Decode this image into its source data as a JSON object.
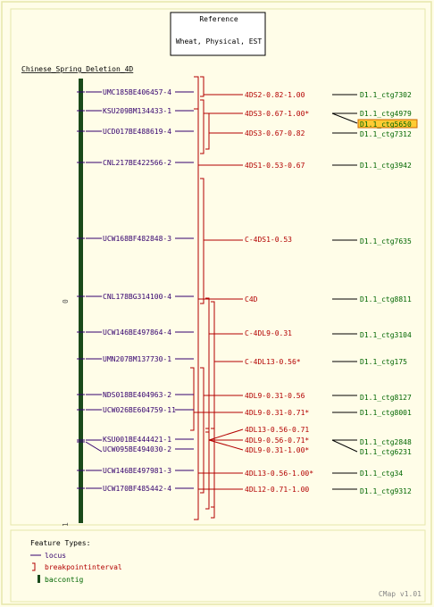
{
  "reference": {
    "title": "Reference",
    "subtitle": "Wheat, Physical, EST"
  },
  "map_name": "Chinese_Spring_Deletion_4D",
  "scale": {
    "start": "0",
    "end": "1"
  },
  "colors": {
    "locus_label": "#33006e",
    "breakpoint": "#b30000",
    "contig": "#006600",
    "contig_bar": "#1a4a1a",
    "highlight_fill": "#ffcc33",
    "highlight_border": "#cc6600",
    "border": "#e6e6aa"
  },
  "loci": [
    "UMC185BE406457-4",
    "KSU209BM134433-1",
    "UCD017BE488619-4",
    "CNL217BE422566-2",
    "UCW168BF482848-3",
    "CNL178BG314100-4",
    "UCW146BE497864-4",
    "UMN207BM137730-1",
    "NDS018BE404963-2",
    "UCW026BE604759-11",
    "KSU001BE444421-1",
    "UCW095BE494030-2",
    "UCW146BE497981-3",
    "UCW170BF485442-4"
  ],
  "breakpoints": [
    "4DS2-0.82-1.00",
    "4DS3-0.67-1.00*",
    "4DS3-0.67-0.82",
    "4DS1-0.53-0.67",
    "C-4DS1-0.53",
    "C4D",
    "C-4DL9-0.31",
    "C-4DL13-0.56*",
    "4DL9-0.31-0.56",
    "4DL9-0.31-0.71*",
    "4DL13-0.56-0.71",
    "4DL9-0.56-0.71*",
    "4DL9-0.31-1.00*",
    "4DL13-0.56-1.00*",
    "4DL12-0.71-1.00"
  ],
  "contigs": [
    "D1.1_ctg7302",
    "D1.1_ctg4979",
    "D1.1_ctg5650",
    "D1.1_ctg7312",
    "D1.1_ctg3942",
    "D1.1_ctg7635",
    "D1.1_ctg8811",
    "D1.1_ctg3104",
    "D1.1_ctg175",
    "D1.1_ctg8127",
    "D1.1_ctg8001",
    "D1.1_ctg2848",
    "D1.1_ctg6231",
    "D1.1_ctg34",
    "D1.1_ctg9312"
  ],
  "legend": {
    "title": "Feature Types:",
    "items": [
      "locus",
      "breakpointinterval",
      "baccontig"
    ]
  },
  "footer": "CMap v1.01"
}
